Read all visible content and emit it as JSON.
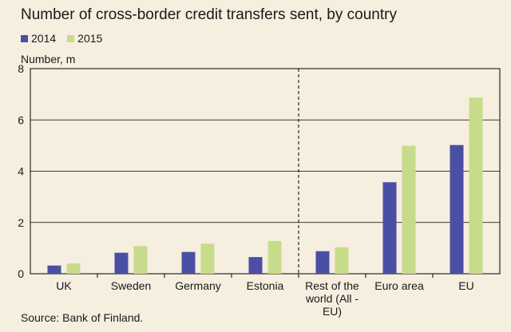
{
  "title": "Number of cross-border credit transfers sent, by country",
  "unit_label": "Number, m",
  "source": "Source: Bank of Finland.",
  "colors": {
    "series_2014": "#4b4fa3",
    "series_2015": "#c6dc8b",
    "background": "#f6eedf",
    "grid": "#000000"
  },
  "chart_data": {
    "type": "bar",
    "categories": [
      "UK",
      "Sweden",
      "Germany",
      "Estonia",
      "Rest of the world (All - EU)",
      "Euro area",
      "EU"
    ],
    "category_lines": [
      [
        "UK"
      ],
      [
        "Sweden"
      ],
      [
        "Germany"
      ],
      [
        "Estonia"
      ],
      [
        "Rest of the",
        "world (All -",
        "EU)"
      ],
      [
        "Euro area"
      ],
      [
        "EU"
      ]
    ],
    "series": [
      {
        "name": "2014",
        "values": [
          0.32,
          0.82,
          0.85,
          0.65,
          0.88,
          3.57,
          5.02
        ]
      },
      {
        "name": "2015",
        "values": [
          0.4,
          1.08,
          1.17,
          1.28,
          1.03,
          4.99,
          6.87
        ]
      }
    ],
    "ylim": [
      0,
      8
    ],
    "yticks": [
      0,
      2,
      4,
      6,
      8
    ],
    "grid": true,
    "divider_after_category": 3,
    "legend_position": "top-left"
  }
}
